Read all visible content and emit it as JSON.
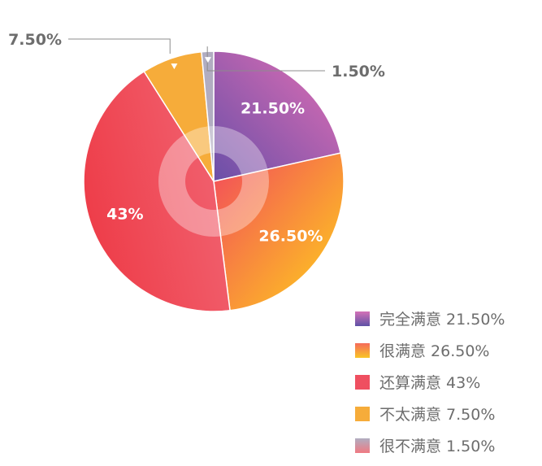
{
  "chart_data": {
    "type": "pie",
    "variant": "donut",
    "title": "",
    "categories": [
      "完全满意",
      "很满意",
      "还算满意",
      "不太满意",
      "很不满意"
    ],
    "values": [
      21.5,
      26.5,
      43,
      7.5,
      1.5
    ],
    "slice_labels": [
      "21.50%",
      "26.50%",
      "43%",
      "7.50%",
      "1.50%"
    ],
    "legend_texts": [
      "完全满意 21.50%",
      "很满意 26.50%",
      "还算满意 43%",
      "不太满意 7.50%",
      "很不满意 1.50%"
    ],
    "legend_position": "bottom-right",
    "colors": [
      [
        "#6a4fa8",
        "#e36fb4"
      ],
      [
        "#f2495c",
        "#ffd31a"
      ],
      [
        "#ee3b47",
        "#f16472"
      ],
      [
        "#f6ac3a",
        "#f6ac3a"
      ],
      [
        "#b1adc1",
        "#b1adc1"
      ]
    ],
    "legend_colors": [
      [
        "#d472b8",
        "#5e52a6"
      ],
      [
        "#f56b5a",
        "#f9c425"
      ],
      [
        "#ef4f60",
        "#ef4f60"
      ],
      [
        "#f6ac3a",
        "#f6ac3a"
      ],
      [
        "#b1adc1",
        "#f07a82"
      ]
    ],
    "label_color": "#ffffff",
    "outside_label_color": "#6d6d6d"
  }
}
